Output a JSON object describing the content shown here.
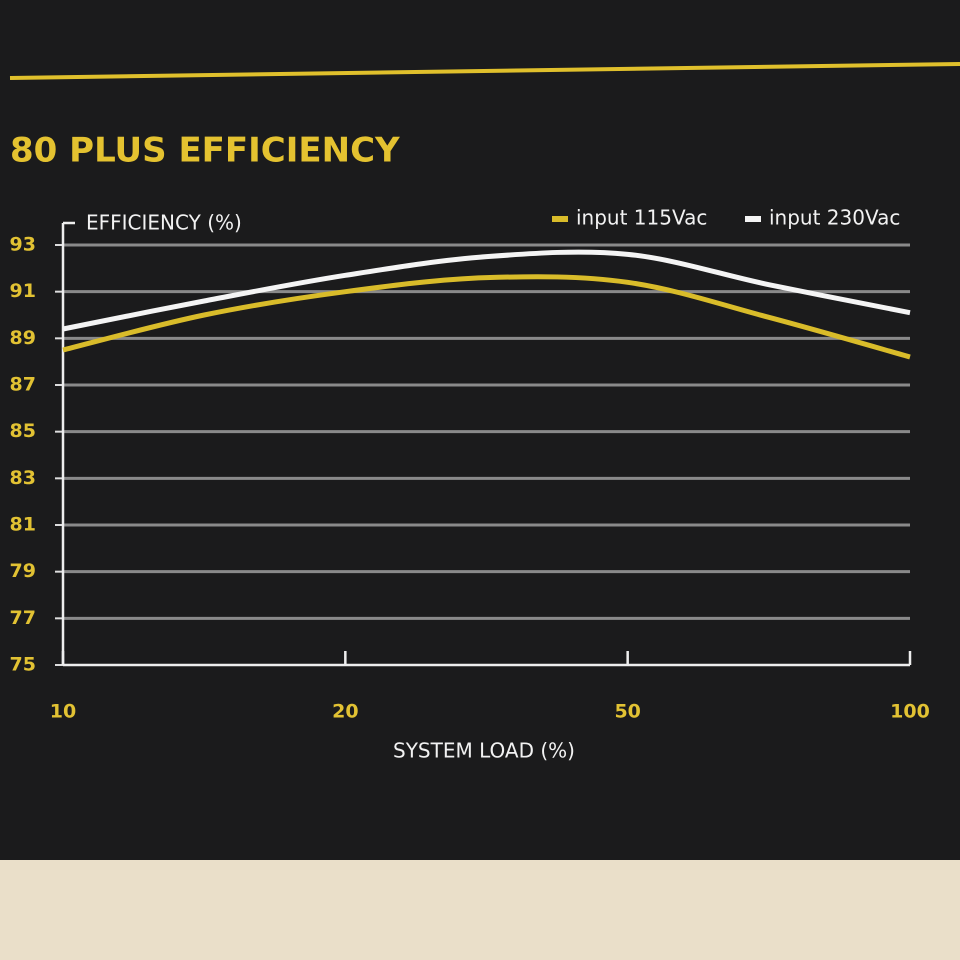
{
  "chart_data": {
    "type": "line",
    "title": "80 PLUS EFFICIENCY",
    "y_label": "EFFICIENCY (%)",
    "x_label": "SYSTEM LOAD (%)",
    "categories": [
      "10",
      null,
      "20",
      null,
      "50",
      null,
      "100"
    ],
    "series": [
      {
        "name": "input 115Vac",
        "color": "#d9bc2a",
        "values": [
          88.5,
          90.0,
          91.0,
          91.6,
          91.4,
          89.9,
          88.2
        ]
      },
      {
        "name": "input 230Vac",
        "color": "#f4f4f4",
        "values": [
          89.4,
          90.6,
          91.7,
          92.5,
          92.6,
          91.3,
          90.1
        ]
      }
    ],
    "ylim": [
      75,
      93
    ],
    "yticks": [
      75,
      77,
      79,
      81,
      83,
      85,
      87,
      89,
      91,
      93
    ],
    "grid": true,
    "legend": "top-right"
  }
}
